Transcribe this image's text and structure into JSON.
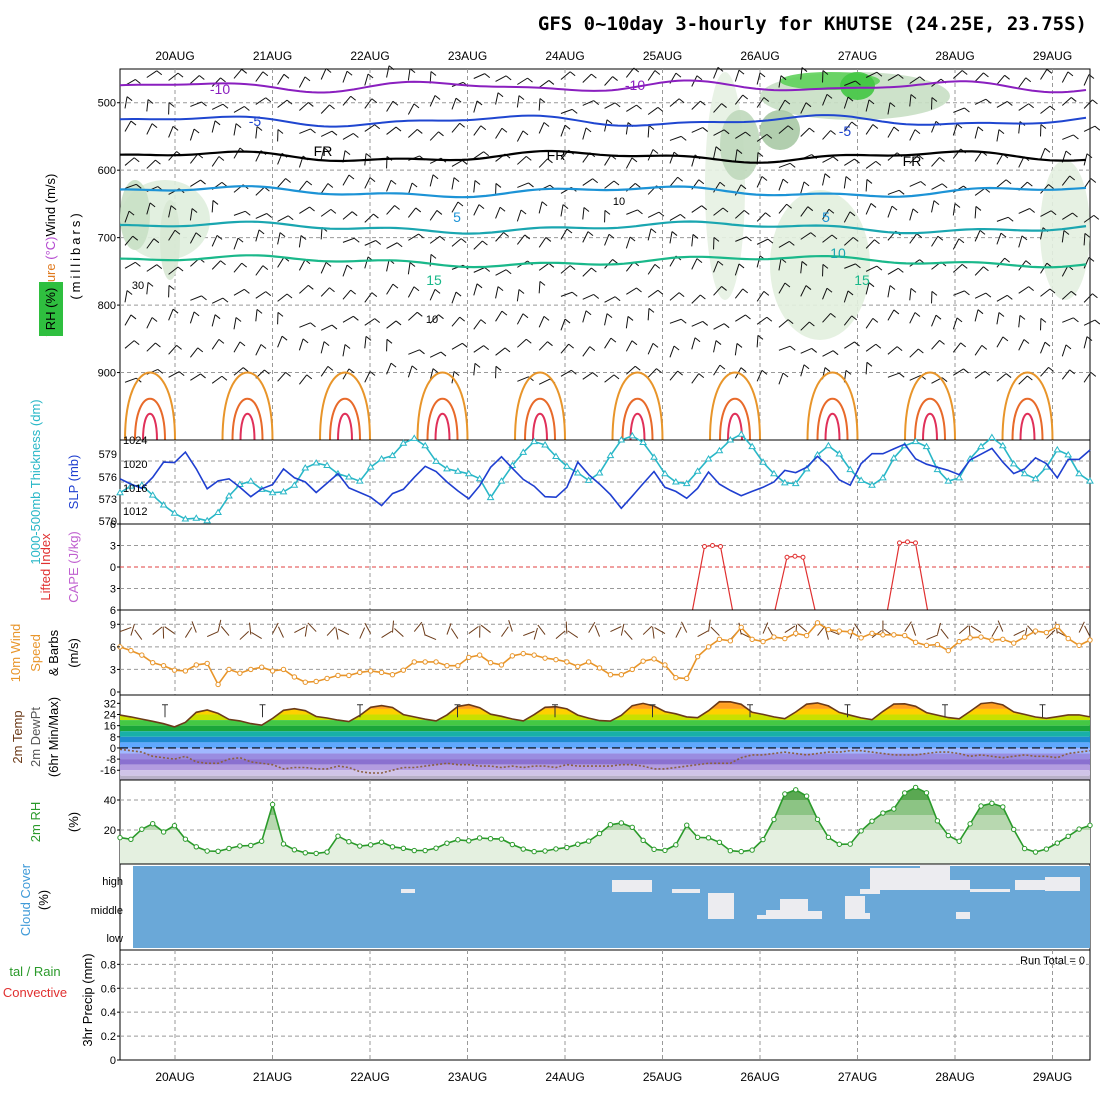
{
  "title": "GFS 0~10day 3-hourly for KHUTSE (24.25E, 23.75S)",
  "dates": [
    "20AUG",
    "21AUG",
    "22AUG",
    "23AUG",
    "24AUG",
    "25AUG",
    "26AUG",
    "27AUG",
    "28AUG",
    "29AUG"
  ],
  "run_total": "Run Total = 0",
  "colors": {
    "rh_green": "#2fbf3f",
    "temp_blue": "#1f46d0",
    "slp": "#1f3fd0",
    "thick": "#29b7c7",
    "wind": "#e8952a",
    "lifted": "#e03030",
    "rh2m": "#2a9a2a",
    "cloud": "#6aa8d8"
  },
  "chart_data": [
    {
      "panel": "upper-air",
      "type": "contour",
      "ylabel_parts": [
        "Temperature",
        "(°C)",
        "Wind",
        "(m/s)"
      ],
      "ylabel_ax": "(millibars)",
      "ylabel_rh": "RH (%)",
      "y_ticks": [
        "500",
        "600",
        "700",
        "800",
        "900"
      ],
      "ylim": [
        450,
        1000
      ],
      "temperature_labels": [
        "-10",
        "-10",
        "-5",
        "-5",
        "FR",
        "FR",
        "FR",
        "5",
        "5",
        "10",
        "15",
        "15"
      ],
      "rh_labels": [
        "30",
        "10",
        "10"
      ],
      "temperature_levels_c": [
        -10,
        -5,
        0,
        5,
        10,
        15
      ]
    },
    {
      "panel": "slp-thickness",
      "type": "line",
      "ylabel_thick": "1000-500mb Thickness (dm)",
      "ylabel_slp": "SLP (mb)",
      "ticks_left": [
        "579",
        "576",
        "573",
        "570"
      ],
      "ticks_right": [
        "1024",
        "1020",
        "1016",
        "1012"
      ],
      "series": [
        {
          "name": "SLP (mb)",
          "values": [
            1016.6,
            1015.6,
            1014.8,
            1016.9,
            1019.8,
            1019.7,
            1021.7,
            1018.5,
            1014.7,
            1016.2,
            1016.6,
            1015.0,
            1013.2,
            1014.7,
            1015.5,
            1018.5,
            1016.8,
            1016.0,
            1014.0,
            1015.8,
            1017.6,
            1014.9,
            1014.0,
            1013.1,
            1011.5,
            1013.8,
            1014.6,
            1016.9,
            1019.0,
            1018.0,
            1016.0,
            1014.3,
            1012.8,
            1015.3,
            1018.8,
            1020.8,
            1018.6,
            1016.5,
            1015.2,
            1013.2,
            1013.1,
            1015.0,
            1019.8,
            1017.4,
            1015.6,
            1013.6,
            1011.0,
            1013.3,
            1015.7,
            1018.0,
            1015.0,
            1014.2,
            1012.9,
            1014.8,
            1017.9,
            1015.6,
            1014.4,
            1013.4,
            1014.2,
            1015.0,
            1016.0,
            1018.2,
            1017.8,
            1018.8,
            1020.9,
            1019.0,
            1016.4,
            1015.4,
            1019.5,
            1021.4,
            1021.4,
            1022.3,
            1023.2,
            1020.4,
            1019.4,
            1018.8,
            1018.2,
            1017.4,
            1020.2,
            1021.3,
            1022.4,
            1019.8,
            1017.6,
            1018.5,
            1020.6,
            1019.5,
            1016.8,
            1020.3,
            1020.3,
            1022.1
          ]
        },
        {
          "name": "1000-500mb Thickness (dm)",
          "values": [
            573.8,
            574.6,
            574.7,
            573.5,
            572.3,
            571.3,
            570.6,
            570.7,
            570.4,
            571.4,
            573.4,
            574.8,
            575.2,
            574.2,
            573.8,
            573.9,
            574.7,
            576.8,
            577.4,
            577.1,
            576.1,
            575.7,
            575.2,
            576.9,
            577.9,
            578.3,
            579.8,
            580.4,
            579.5,
            577.6,
            576.7,
            576.4,
            576.1,
            575.5,
            573.2,
            575.2,
            577.1,
            578.7,
            580.0,
            579.6,
            578.2,
            577.0,
            576.2,
            575.3,
            576.2,
            578.3,
            580.2,
            580.7,
            579.9,
            578.1,
            576.1,
            575.1,
            574.9,
            576.4,
            577.9,
            578.9,
            580.2,
            580.9,
            579.4,
            577.5,
            576.1,
            575.0,
            574.9,
            576.7,
            578.4,
            579.5,
            578.5,
            576.6,
            575.3,
            574.7,
            575.6,
            578.0,
            579.5,
            580.0,
            579.4,
            576.6,
            575.2,
            575.6,
            577.9,
            579.4,
            580.5,
            579.5,
            577.3,
            576.1,
            575.5,
            576.9,
            579.0,
            578.4,
            576.1,
            575.2
          ]
        }
      ]
    },
    {
      "panel": "lifted-cape",
      "type": "line",
      "ylabel_li": "Lifted Index",
      "ylabel_cape": "CAPE (J/kg)",
      "y_ticks": [
        "6",
        "3",
        "0",
        "3",
        "6"
      ],
      "ylim": [
        -6,
        6
      ],
      "peaks": [
        {
          "x": "25AUG",
          "value": -3
        },
        {
          "x": "26AUG",
          "value": -1.5
        },
        {
          "x": "27AUG",
          "value": -3.5
        }
      ]
    },
    {
      "panel": "10m-wind",
      "type": "line",
      "ylabel": [
        "10m Wind",
        "Speed",
        "& Barbs",
        "(m/s)"
      ],
      "y_ticks": [
        "0",
        "3",
        "6",
        "9"
      ],
      "ylim": [
        0,
        10
      ],
      "series": [
        {
          "name": "10m Wind Speed (m/s)",
          "values": [
            6.0,
            5.5,
            4.9,
            3.9,
            3.5,
            2.9,
            2.8,
            3.6,
            3.8,
            1.0,
            3.0,
            2.5,
            3.0,
            3.3,
            2.8,
            3.0,
            2.0,
            1.3,
            1.4,
            1.8,
            2.2,
            2.2,
            2.6,
            2.8,
            2.6,
            2.3,
            2.9,
            4.0,
            4.0,
            4.0,
            3.5,
            3.5,
            4.6,
            4.9,
            3.9,
            3.6,
            4.8,
            5.1,
            4.9,
            4.5,
            4.3,
            4.0,
            3.4,
            4.0,
            3.2,
            2.3,
            2.3,
            3.0,
            4.1,
            4.4,
            3.6,
            1.9,
            1.8,
            4.7,
            6.0,
            7.0,
            6.8,
            8.6,
            7.0,
            6.7,
            7.3,
            7.1,
            7.8,
            7.5,
            9.2,
            8.3,
            8.1,
            8.0,
            7.2,
            7.8,
            7.6,
            7.6,
            7.5,
            6.6,
            6.2,
            6.3,
            5.5,
            6.7,
            7.2,
            7.3,
            6.9,
            7.0,
            6.5,
            7.3,
            8.1,
            7.9,
            8.7,
            7.1,
            6.2,
            6.9
          ]
        }
      ]
    },
    {
      "panel": "2m-temp",
      "type": "area",
      "ylabel": [
        "2m Temp",
        "2m DewPt",
        "(6hr Min/Max)"
      ],
      "y_ticks": [
        "32",
        "24",
        "16",
        "8",
        "0",
        "-8",
        "-16"
      ],
      "ylim": [
        -23,
        38
      ],
      "series": [
        {
          "name": "2m Temp",
          "values": [
            23.6,
            22.3,
            20.7,
            19.1,
            17.4,
            15.1,
            18.4,
            25.6,
            27.2,
            24.8,
            20.5,
            19.4,
            17.5,
            16.3,
            21.2,
            27.0,
            28.2,
            26.7,
            22.6,
            21.5,
            20.0,
            18.9,
            23.3,
            29.2,
            30.4,
            29.0,
            23.9,
            22.3,
            20.6,
            19.4,
            23.7,
            29.8,
            31.1,
            28.9,
            24.2,
            22.7,
            20.8,
            19.4,
            23.9,
            29.2,
            29.6,
            28.0,
            23.6,
            21.4,
            19.6,
            19.3,
            23.4,
            30.3,
            32.0,
            30.1,
            26.1,
            24.5,
            22.3,
            21.7,
            26.7,
            33.2,
            33.1,
            31.3,
            25.6,
            24.1,
            22.3,
            21.0,
            25.8,
            31.4,
            32.3,
            30.2,
            25.5,
            23.5,
            21.6,
            20.3,
            26.2,
            31.5,
            31.7,
            29.9,
            25.4,
            23.6,
            21.8,
            20.9,
            26.2,
            31.8,
            32.6,
            30.9,
            25.9,
            24.1,
            22.2,
            21.3,
            22.4,
            23.7,
            23.7,
            22.3
          ]
        },
        {
          "name": "2m DewPt",
          "values": [
            -1,
            -2,
            -3,
            -6,
            -7,
            -8,
            -6,
            -10,
            -11,
            -11,
            -8,
            -7,
            -10,
            -11,
            -12,
            -15,
            -14,
            -14,
            -15,
            -15,
            -13,
            -14,
            -17,
            -18,
            -18,
            -16,
            -14,
            -14,
            -13,
            -12,
            -11,
            -12,
            -12,
            -13,
            -13,
            -14,
            -13,
            -14,
            -13,
            -13,
            -14,
            -12,
            -13,
            -13,
            -13,
            -13,
            -12,
            -12,
            -13,
            -15,
            -15,
            -14,
            -13,
            -12,
            -11,
            -11,
            -11,
            -7,
            -5,
            -5,
            -4,
            -3,
            -4,
            -5,
            -4,
            -3,
            -3,
            -2,
            -2,
            -3,
            -4,
            -5,
            -5,
            -5,
            -4,
            -3,
            -3,
            -4,
            -6,
            -5,
            -6,
            -7,
            -6,
            -5,
            -6,
            -6,
            -7,
            -4,
            -3,
            -2
          ]
        }
      ]
    },
    {
      "panel": "2m-rh",
      "type": "area",
      "ylabel": [
        "2m RH",
        "(%)"
      ],
      "y_ticks": [
        "40",
        "20"
      ],
      "ylim": [
        0,
        52
      ],
      "series": [
        {
          "name": "2m RH (%)",
          "values": [
            14.9,
            13.8,
            20.5,
            24.2,
            18.7,
            22.9,
            13.9,
            8.8,
            6.0,
            5.8,
            7.7,
            9.4,
            9.7,
            12.5,
            37.0,
            10.7,
            6.8,
            4.8,
            4.4,
            5.3,
            15.9,
            12.2,
            9.3,
            10.1,
            11.9,
            8.8,
            7.8,
            6.3,
            6.3,
            7.9,
            11.2,
            13.5,
            12.8,
            14.7,
            14.2,
            13.9,
            10.3,
            7.3,
            5.6,
            6.0,
            7.4,
            8.3,
            10.5,
            12.6,
            17.6,
            23.5,
            24.7,
            21.8,
            13.1,
            7.1,
            6.4,
            10.1,
            23.2,
            15.1,
            14.8,
            11.8,
            6.2,
            5.6,
            6.6,
            13.6,
            27.0,
            44.0,
            46.8,
            42.6,
            27.1,
            15.1,
            10.5,
            10.6,
            19.4,
            25.9,
            31.3,
            34.0,
            44.7,
            48.4,
            44.8,
            26.1,
            16.3,
            12.5,
            24.1,
            36.0,
            37.8,
            35.4,
            20.4,
            7.6,
            5.3,
            7.3,
            11.3,
            15.8,
            20.6,
            23.1
          ]
        }
      ]
    },
    {
      "panel": "cloud-cover",
      "type": "heatmap",
      "ylabel": [
        "Cloud Cover",
        "(%)"
      ],
      "y_ticks": [
        "high",
        "middle",
        "low"
      ],
      "levels": [
        "high",
        "middle"
      ]
    },
    {
      "panel": "precip",
      "type": "bar",
      "ylabel_left": [
        "tal / Rain",
        "Convective"
      ],
      "ylabel_right": "3hr Precip (mm)",
      "y_ticks": [
        "0.8",
        "0.6",
        "0.4",
        "0.2",
        "0"
      ],
      "ylim": [
        0,
        0.9
      ],
      "values": []
    }
  ]
}
